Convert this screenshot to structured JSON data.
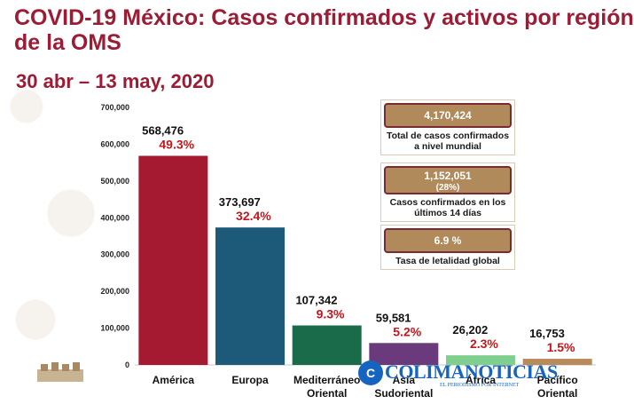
{
  "header": {
    "title_line1": "COVID-19 México: Casos confirmados y activos por región",
    "title_line2": "de la OMS",
    "subtitle": "30 abr – 13 may, 2020"
  },
  "colors": {
    "title": "#9b1c35",
    "percent_text": "#c4161c",
    "box_header": "#b08a5a",
    "box_border": "#7a2a32"
  },
  "chart_data": {
    "type": "bar",
    "categories": [
      [
        "América"
      ],
      [
        "Europa"
      ],
      [
        "Mediterráneo",
        "Oriental"
      ],
      [
        "Asia",
        "Sudoriental"
      ],
      [
        "África"
      ],
      [
        "Pacífico",
        "Oriental"
      ]
    ],
    "values": [
      568476,
      373697,
      107342,
      59581,
      26202,
      16753
    ],
    "value_labels": [
      "568,476",
      "373,697",
      "107,342",
      "59,581",
      "26,202",
      "16,753"
    ],
    "percent_labels": [
      "49.3%",
      "32.4%",
      "9.3%",
      "5.2%",
      "2.3%",
      "1.5%"
    ],
    "bar_colors": [
      "#a51a30",
      "#1d5a7a",
      "#1a6b4a",
      "#6b3a7d",
      "#7fcf8f",
      "#b98a5a"
    ],
    "yticks": [
      0,
      100000,
      200000,
      300000,
      400000,
      500000,
      600000,
      700000
    ],
    "ytick_labels": [
      "0",
      "100,000",
      "200,000",
      "300,000",
      "400,000",
      "500,000",
      "600,000",
      "700,000"
    ],
    "ylim": [
      0,
      700000
    ],
    "grid": false
  },
  "info_boxes": [
    {
      "value": "4,170,424",
      "note": "",
      "label": "Total de casos confirmados a nivel mundial"
    },
    {
      "value": "1,152,051",
      "note": "(28%)",
      "label": "Casos confirmados en los últimos 14 días"
    },
    {
      "value": "6.9 %",
      "note": "",
      "label": "Tasa de letalidad global"
    }
  ],
  "watermark": {
    "logo_letter": "C",
    "name": "COLIMANOTICIAS",
    "tagline": "EL PERIODISMO POR INTERNET"
  }
}
